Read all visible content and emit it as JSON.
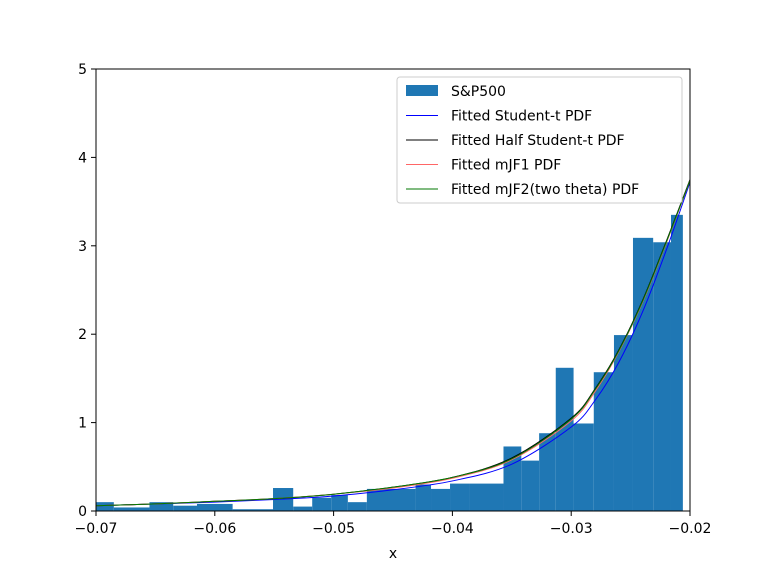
{
  "chart_data": {
    "type": "bar",
    "title": "",
    "xlabel": "x",
    "ylabel": "",
    "xlim": [
      -0.07,
      -0.02
    ],
    "ylim": [
      0,
      5
    ],
    "grid": false,
    "legend_position": "top-right",
    "x_ticks": [
      {
        "value": -0.07,
        "label": "−0.07"
      },
      {
        "value": -0.06,
        "label": "−0.06"
      },
      {
        "value": -0.05,
        "label": "−0.05"
      },
      {
        "value": -0.04,
        "label": "−0.04"
      },
      {
        "value": -0.03,
        "label": "−0.03"
      },
      {
        "value": -0.02,
        "label": "−0.02"
      }
    ],
    "y_ticks": [
      {
        "value": 0,
        "label": "0"
      },
      {
        "value": 1,
        "label": "1"
      },
      {
        "value": 2,
        "label": "2"
      },
      {
        "value": 3,
        "label": "3"
      },
      {
        "value": 4,
        "label": "4"
      },
      {
        "value": 5,
        "label": "5"
      }
    ],
    "histogram": {
      "name": "S&P500",
      "color": "#1f77b4",
      "bin_edges": [
        -0.07,
        -0.0685,
        -0.0655,
        -0.0635,
        -0.0615,
        -0.0585,
        -0.0551,
        -0.0534,
        -0.0518,
        -0.0502,
        -0.0488,
        -0.0472,
        -0.0431,
        -0.0418,
        -0.0402,
        -0.0386,
        -0.0357,
        -0.0342,
        -0.0327,
        -0.0313,
        -0.0298,
        -0.0281,
        -0.0264,
        -0.0248,
        -0.0231,
        -0.0216,
        -0.0206
      ],
      "heights": [
        0.1,
        0.04,
        0.1,
        0.06,
        0.08,
        0.02,
        0.26,
        0.05,
        0.15,
        0.18,
        0.1,
        0.25,
        0.3,
        0.25,
        0.31,
        0.31,
        0.73,
        0.57,
        0.88,
        1.62,
        0.99,
        1.57,
        1.99,
        3.09,
        3.04,
        3.35
      ]
    },
    "series": [
      {
        "name": "Fitted Student-t PDF",
        "color": "#0000ff",
        "x": [
          -0.07,
          -0.065,
          -0.06,
          -0.055,
          -0.05,
          -0.045,
          -0.04,
          -0.035,
          -0.03,
          -0.028,
          -0.026,
          -0.024,
          -0.022,
          -0.02
        ],
        "y": [
          0.06,
          0.08,
          0.1,
          0.13,
          0.17,
          0.24,
          0.34,
          0.53,
          0.95,
          1.25,
          1.68,
          2.25,
          2.95,
          3.72
        ]
      },
      {
        "name": "Fitted Half Student-t PDF",
        "color": "#000000",
        "x": [
          -0.07,
          -0.065,
          -0.06,
          -0.055,
          -0.05,
          -0.045,
          -0.04,
          -0.035,
          -0.03,
          -0.028,
          -0.026,
          -0.024,
          -0.022,
          -0.02
        ],
        "y": [
          0.06,
          0.08,
          0.11,
          0.14,
          0.19,
          0.27,
          0.38,
          0.6,
          1.05,
          1.38,
          1.82,
          2.38,
          3.05,
          3.75
        ]
      },
      {
        "name": "Fitted mJF1 PDF",
        "color": "#ff6666",
        "x": [
          -0.07,
          -0.065,
          -0.06,
          -0.055,
          -0.05,
          -0.045,
          -0.04,
          -0.035,
          -0.03,
          -0.028,
          -0.026,
          -0.024,
          -0.022,
          -0.02
        ],
        "y": [
          0.06,
          0.08,
          0.11,
          0.14,
          0.19,
          0.26,
          0.37,
          0.58,
          1.02,
          1.35,
          1.8,
          2.36,
          3.03,
          3.74
        ]
      },
      {
        "name": "Fitted mJF2(two theta) PDF",
        "color": "#007700",
        "x": [
          -0.07,
          -0.065,
          -0.06,
          -0.055,
          -0.05,
          -0.045,
          -0.04,
          -0.035,
          -0.03,
          -0.028,
          -0.026,
          -0.024,
          -0.022,
          -0.02
        ],
        "y": [
          0.06,
          0.08,
          0.11,
          0.14,
          0.19,
          0.27,
          0.38,
          0.59,
          1.04,
          1.37,
          1.81,
          2.37,
          3.04,
          3.74
        ]
      }
    ]
  }
}
